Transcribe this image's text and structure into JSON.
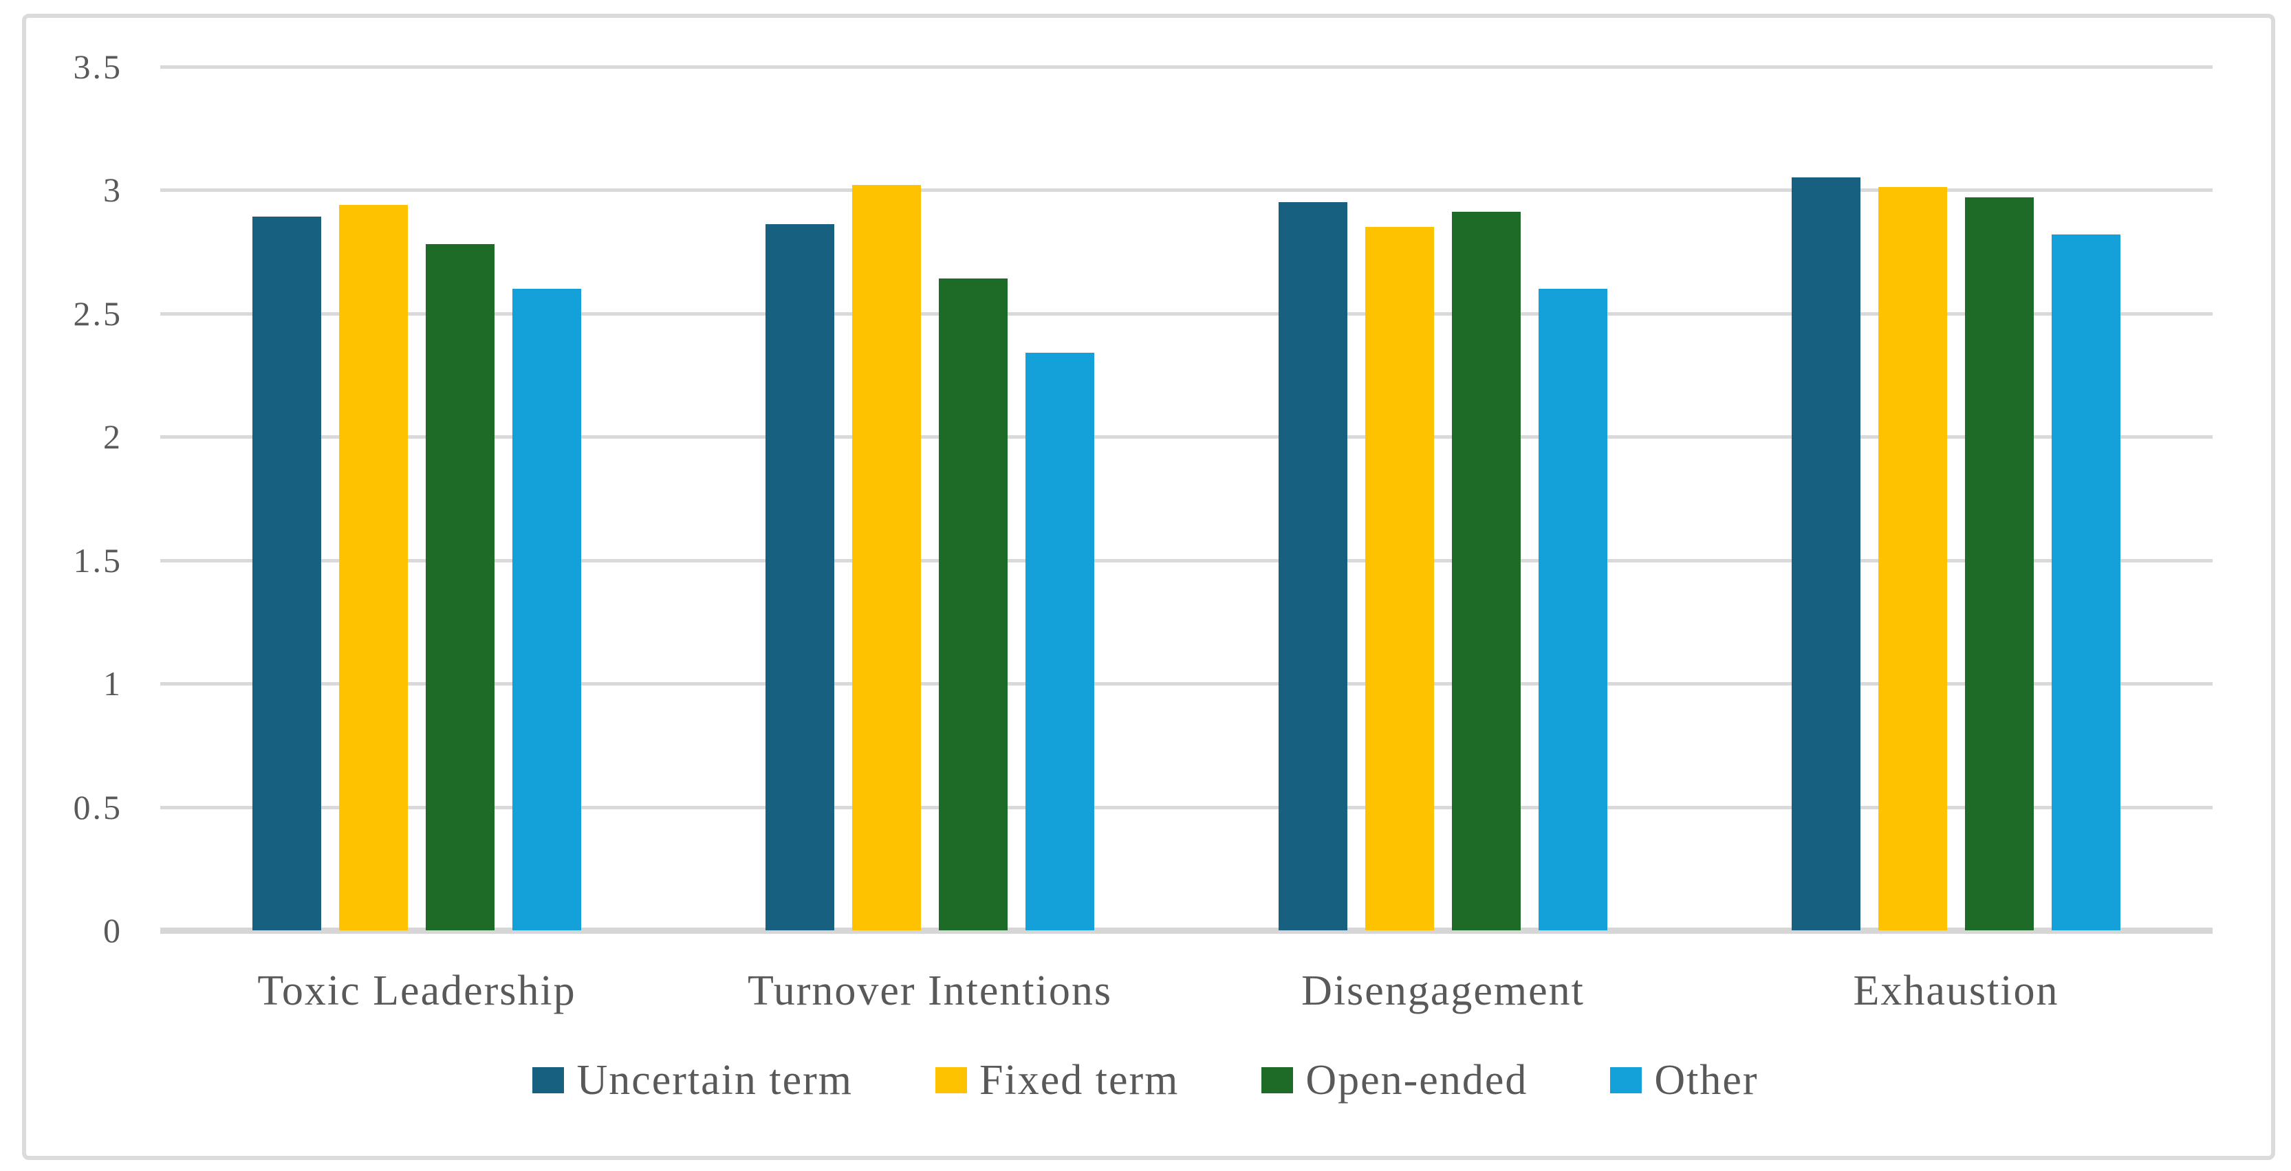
{
  "chart_data": {
    "type": "bar",
    "title": "",
    "categories": [
      "Toxic Leadership",
      "Turnover Intentions",
      "Disengagement",
      "Exhaustion"
    ],
    "series": [
      {
        "name": "Uncertain term",
        "color": "#176080",
        "values": [
          2.89,
          2.86,
          2.95,
          3.05
        ]
      },
      {
        "name": "Fixed term",
        "color": "#FFC200",
        "values": [
          2.94,
          3.02,
          2.85,
          3.01
        ]
      },
      {
        "name": "Open-ended",
        "color": "#1D6B26",
        "values": [
          2.78,
          2.64,
          2.91,
          2.97
        ]
      },
      {
        "name": "Other",
        "color": "#14A1D9",
        "values": [
          2.6,
          2.34,
          2.6,
          2.82
        ]
      }
    ],
    "ylim": [
      0,
      3.5
    ],
    "ytick_values": [
      3.5,
      3,
      2.5,
      2,
      1.5,
      1,
      0.5,
      0
    ],
    "ytick_labels": [
      "3.5",
      "3",
      "2.5",
      "2",
      "1.5",
      "1",
      "0.5",
      "0"
    ],
    "grid": true,
    "legend_position": "bottom",
    "colors": {
      "gridline": "#D9D9D9",
      "axis_line": "#D6D6D6",
      "text": "#595959",
      "frame_border": "#DBDBDB",
      "background": "#FFFFFF"
    }
  }
}
